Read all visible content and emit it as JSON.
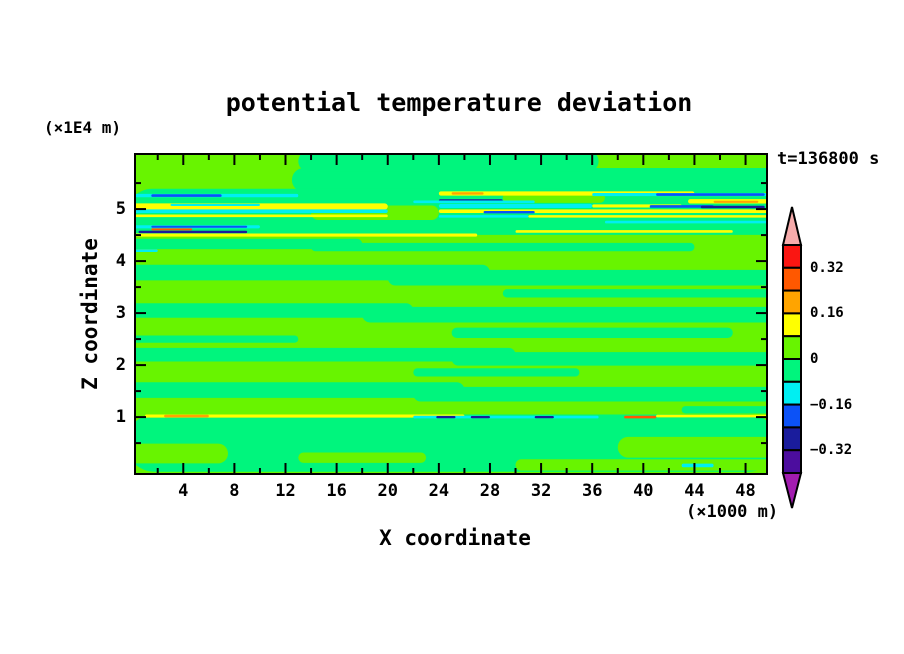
{
  "chart_data": {
    "type": "filled_contour",
    "title": "potential temperature deviation",
    "time_label": "t=136800 s",
    "x_axis": {
      "label": "X coordinate",
      "unit": "(×1000 m)",
      "major_ticks": [
        4,
        8,
        12,
        16,
        20,
        24,
        28,
        32,
        36,
        40,
        44,
        48
      ],
      "minor_ticks": [
        2,
        6,
        10,
        14,
        18,
        22,
        26,
        30,
        34,
        38,
        42,
        46
      ],
      "range": [
        0.3,
        49.6
      ]
    },
    "z_axis": {
      "label": "Z coordinate",
      "unit": "(×1E4 m)",
      "major_ticks": [
        1,
        2,
        3,
        4,
        5
      ],
      "minor_ticks": [
        0.5,
        1.5,
        2.5,
        3.5,
        4.5,
        5.5
      ],
      "range": [
        -0.075,
        6.04
      ]
    },
    "palette": {
      "pink": "#F6ABAB",
      "red": "#FA1612",
      "orangered": "#FF5800",
      "orange": "#FFA400",
      "yellow": "#FFFF00",
      "chartreuse": "#68F400",
      "springgreen": "#00F57D",
      "cyan": "#00EFF2",
      "blue": "#0C52F7",
      "navy": "#1A1C9C",
      "indigo": "#4C0D9E",
      "purple": "#A21CB0"
    },
    "colorbar": {
      "over_color": "pink",
      "under_color": "purple",
      "segments": [
        {
          "color": "red",
          "from": 0.32,
          "to": 0.4
        },
        {
          "color": "orangered",
          "from": 0.24,
          "to": 0.32
        },
        {
          "color": "orange",
          "from": 0.16,
          "to": 0.24
        },
        {
          "color": "yellow",
          "from": 0.08,
          "to": 0.16
        },
        {
          "color": "chartreuse",
          "from": 0.0,
          "to": 0.08
        },
        {
          "color": "springgreen",
          "from": -0.08,
          "to": 0.0
        },
        {
          "color": "cyan",
          "from": -0.16,
          "to": -0.08
        },
        {
          "color": "blue",
          "from": -0.24,
          "to": -0.16
        },
        {
          "color": "navy",
          "from": -0.32,
          "to": -0.24
        },
        {
          "color": "indigo",
          "from": -0.4,
          "to": -0.32
        }
      ],
      "labels": [
        {
          "text": "0.32",
          "boundary": 1
        },
        {
          "text": "0.16",
          "boundary": 3
        },
        {
          "text": "0",
          "boundary": 5
        },
        {
          "text": "−0.16",
          "boundary": 7
        },
        {
          "text": "−0.32",
          "boundary": 9
        }
      ]
    },
    "field": {
      "background": "chartreuse",
      "shapes": [
        [
          "springgreen",
          12.5,
          50.5,
          5.56,
          0.46
        ],
        [
          "springgreen",
          13,
          36.5,
          5.92,
          0.4
        ],
        [
          "springgreen",
          -0.5,
          50.5,
          4.88,
          1.02
        ],
        [
          "chartreuse",
          -0.5,
          50.5,
          4.43,
          0.15
        ],
        [
          "chartreuse",
          14,
          24,
          4.93,
          0.28
        ],
        [
          "chartreuse",
          29,
          37,
          5.22,
          0.2
        ],
        [
          "springgreen",
          -0.5,
          18,
          4.33,
          0.2
        ],
        [
          "springgreen",
          14,
          44,
          4.27,
          0.16
        ],
        [
          "springgreen",
          -0.5,
          28,
          3.78,
          0.3
        ],
        [
          "springgreen",
          20,
          50.5,
          3.68,
          0.3
        ],
        [
          "springgreen",
          29,
          50.5,
          3.38,
          0.16
        ],
        [
          "springgreen",
          -0.5,
          22,
          3.05,
          0.28
        ],
        [
          "springgreen",
          18,
          50.5,
          2.97,
          0.3
        ],
        [
          "springgreen",
          25,
          47,
          2.62,
          0.2
        ],
        [
          "springgreen",
          -0.5,
          13,
          2.5,
          0.14
        ],
        [
          "springgreen",
          -0.5,
          30,
          2.2,
          0.26
        ],
        [
          "springgreen",
          25,
          50.5,
          2.12,
          0.26
        ],
        [
          "springgreen",
          22,
          35,
          1.86,
          0.16
        ],
        [
          "springgreen",
          -0.5,
          26,
          1.52,
          0.3
        ],
        [
          "springgreen",
          22,
          50.5,
          1.44,
          0.28
        ],
        [
          "springgreen",
          43,
          50.5,
          1.14,
          0.14
        ],
        [
          "springgreen",
          -0.5,
          50.5,
          0.5,
          1.1
        ],
        [
          "chartreuse",
          -0.5,
          7.5,
          0.3,
          0.38
        ],
        [
          "chartreuse",
          13,
          23,
          0.22,
          0.2
        ],
        [
          "chartreuse",
          30,
          50.5,
          0.08,
          0.22
        ],
        [
          "chartreuse",
          38,
          50.5,
          0.42,
          0.4
        ],
        [
          "cyan",
          43,
          45.5,
          0.07,
          0.07
        ],
        [
          "yellow",
          24,
          44,
          5.3,
          0.08
        ],
        [
          "orange",
          25,
          27.5,
          5.3,
          0.045
        ],
        [
          "cyan",
          -0.5,
          13,
          5.26,
          0.065
        ],
        [
          "blue",
          1.5,
          7,
          5.26,
          0.05
        ],
        [
          "cyan",
          36,
          50,
          5.28,
          0.06
        ],
        [
          "blue",
          41,
          49.5,
          5.28,
          0.05
        ],
        [
          "navy",
          24,
          29,
          5.16,
          0.06
        ],
        [
          "cyan",
          22,
          31.5,
          5.14,
          0.05
        ],
        [
          "yellow",
          43.5,
          50,
          5.15,
          0.085
        ],
        [
          "orange",
          45.5,
          49,
          5.14,
          0.04
        ],
        [
          "yellow",
          -0.5,
          20,
          5.05,
          0.12
        ],
        [
          "cyan",
          3,
          10,
          5.08,
          0.04
        ],
        [
          "cyan",
          24,
          36,
          5.06,
          0.08
        ],
        [
          "yellow",
          36,
          43,
          5.06,
          0.06
        ],
        [
          "blue",
          40.5,
          45.5,
          5.05,
          0.05
        ],
        [
          "navy",
          44.5,
          49.5,
          5.04,
          0.05
        ],
        [
          "cyan",
          -0.5,
          20,
          4.96,
          0.07
        ],
        [
          "yellow",
          24,
          50,
          4.96,
          0.07
        ],
        [
          "blue",
          27.5,
          31.5,
          4.94,
          0.045
        ],
        [
          "yellow",
          -0.5,
          20,
          4.87,
          0.05
        ],
        [
          "cyan",
          24,
          31,
          4.86,
          0.05
        ],
        [
          "yellow",
          31,
          50,
          4.86,
          0.05
        ],
        [
          "cyan",
          37,
          50,
          4.75,
          0.05
        ],
        [
          "cyan",
          -0.5,
          10,
          4.66,
          0.06
        ],
        [
          "blue",
          1.5,
          9,
          4.66,
          0.04
        ],
        [
          "orangered",
          1.5,
          4.7,
          4.61,
          0.04
        ],
        [
          "navy",
          0.5,
          9,
          4.56,
          0.045
        ],
        [
          "yellow",
          30,
          47,
          4.57,
          0.05
        ],
        [
          "yellow",
          -0.5,
          27,
          4.5,
          0.06
        ],
        [
          "cyan",
          -0.5,
          2,
          4.2,
          0.05
        ],
        [
          "yellow",
          1,
          26,
          1.02,
          0.06
        ],
        [
          "orange",
          2.5,
          6,
          1.02,
          0.05
        ],
        [
          "cyan",
          22,
          36.5,
          1.0,
          0.05
        ],
        [
          "navy",
          23.8,
          25.3,
          1.0,
          0.042
        ],
        [
          "navy",
          26.5,
          28,
          1.0,
          0.042
        ],
        [
          "navy",
          31.5,
          33,
          1.0,
          0.042
        ],
        [
          "orangered",
          38.5,
          41,
          1.0,
          0.05
        ],
        [
          "yellow",
          41,
          50.5,
          1.02,
          0.05
        ]
      ]
    }
  }
}
